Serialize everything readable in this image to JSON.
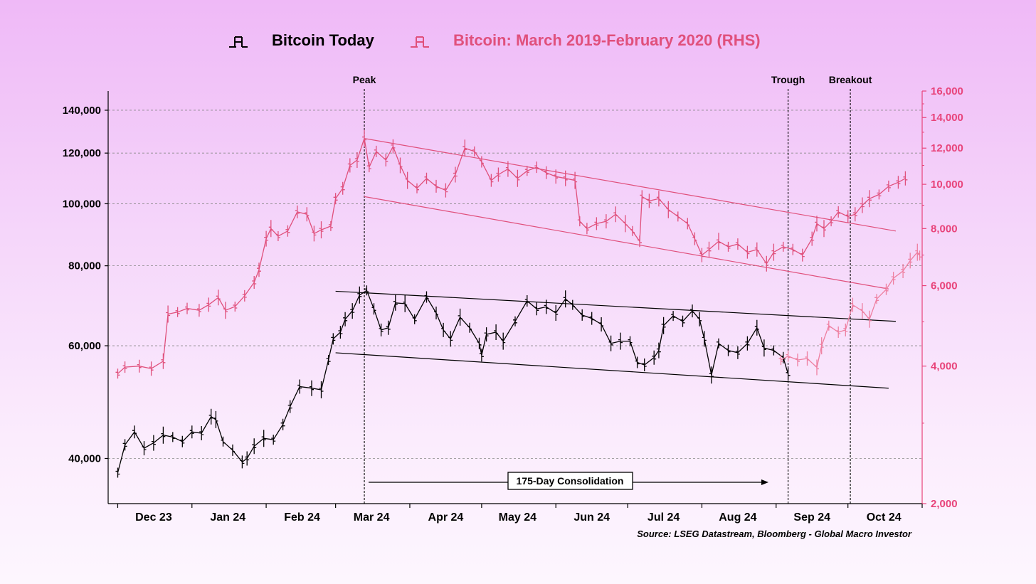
{
  "legend": {
    "series1": "Bitcoin Today",
    "series2": "Bitcoin: March 2019-February 2020 (RHS)"
  },
  "colors": {
    "series1": "#000000",
    "series2": "#e0507c",
    "series2_light": "#ee7fa0",
    "axis_right": "#e8437a"
  },
  "annotations": {
    "peak": "Peak",
    "trough": "Trough",
    "breakout": "Breakout",
    "consolidation": "175-Day Consolidation",
    "source": "Source: LSEG Datastream, Bloomberg - Global Macro Investor"
  },
  "chart_data": {
    "type": "line",
    "title": "",
    "x_tick_labels": [
      "Dec 23",
      "Jan 24",
      "Feb 24",
      "Mar 24",
      "Apr 24",
      "May 24",
      "Jun 24",
      "Jul 24",
      "Aug 24",
      "Sep 24",
      "Oct 24"
    ],
    "y_left": {
      "scale": "log",
      "range": [
        34000,
        150000
      ],
      "ticks": [
        40000,
        60000,
        80000,
        100000,
        120000,
        140000
      ],
      "tick_labels": [
        "40,000",
        "60,000",
        "80,000",
        "100,000",
        "120,000",
        "140,000"
      ]
    },
    "y_right": {
      "scale": "log",
      "range": [
        2000,
        16000
      ],
      "ticks": [
        2000,
        4000,
        6000,
        8000,
        10000,
        12000,
        14000,
        16000
      ],
      "tick_labels": [
        "2,000",
        "4,000",
        "6,000",
        "8,000",
        "10,000",
        "12,000",
        "14,000",
        "16,000"
      ]
    },
    "series": [
      {
        "name": "Bitcoin Today",
        "axis": "left",
        "points": [
          [
            "2023-12-01",
            38000
          ],
          [
            "2023-12-04",
            42000
          ],
          [
            "2023-12-08",
            44000
          ],
          [
            "2023-12-12",
            41500
          ],
          [
            "2023-12-16",
            42300
          ],
          [
            "2023-12-20",
            43500
          ],
          [
            "2023-12-24",
            43200
          ],
          [
            "2023-12-28",
            42500
          ],
          [
            "2024-01-01",
            44000
          ],
          [
            "2024-01-05",
            43800
          ],
          [
            "2024-01-09",
            46500
          ],
          [
            "2024-01-11",
            46000
          ],
          [
            "2024-01-14",
            42500
          ],
          [
            "2024-01-18",
            41200
          ],
          [
            "2024-01-22",
            39500
          ],
          [
            "2024-01-24",
            40000
          ],
          [
            "2024-01-27",
            41800
          ],
          [
            "2024-01-31",
            43000
          ],
          [
            "2024-02-04",
            42800
          ],
          [
            "2024-02-08",
            45200
          ],
          [
            "2024-02-11",
            48200
          ],
          [
            "2024-02-15",
            51800
          ],
          [
            "2024-02-20",
            51500
          ],
          [
            "2024-02-24",
            51200
          ],
          [
            "2024-02-27",
            57000
          ],
          [
            "2024-02-29",
            61500
          ],
          [
            "2024-03-03",
            63000
          ],
          [
            "2024-03-05",
            66000
          ],
          [
            "2024-03-08",
            68000
          ],
          [
            "2024-03-11",
            72000
          ],
          [
            "2024-03-14",
            73200
          ],
          [
            "2024-03-17",
            68500
          ],
          [
            "2024-03-20",
            63500
          ],
          [
            "2024-03-23",
            64000
          ],
          [
            "2024-03-26",
            70000
          ],
          [
            "2024-03-30",
            69800
          ],
          [
            "2024-04-03",
            66000
          ],
          [
            "2024-04-08",
            71500
          ],
          [
            "2024-04-12",
            67500
          ],
          [
            "2024-04-15",
            63500
          ],
          [
            "2024-04-18",
            61500
          ],
          [
            "2024-04-22",
            66500
          ],
          [
            "2024-04-26",
            64000
          ],
          [
            "2024-04-30",
            60500
          ],
          [
            "2024-05-01",
            58000
          ],
          [
            "2024-05-03",
            62500
          ],
          [
            "2024-05-07",
            63000
          ],
          [
            "2024-05-10",
            61000
          ],
          [
            "2024-05-15",
            65500
          ],
          [
            "2024-05-20",
            70500
          ],
          [
            "2024-05-24",
            68500
          ],
          [
            "2024-05-28",
            69000
          ],
          [
            "2024-06-01",
            67500
          ],
          [
            "2024-06-05",
            71000
          ],
          [
            "2024-06-08",
            69500
          ],
          [
            "2024-06-12",
            67000
          ],
          [
            "2024-06-16",
            66200
          ],
          [
            "2024-06-20",
            64800
          ],
          [
            "2024-06-24",
            60500
          ],
          [
            "2024-06-28",
            61000
          ],
          [
            "2024-07-02",
            61000
          ],
          [
            "2024-07-05",
            56500
          ],
          [
            "2024-07-08",
            56000
          ],
          [
            "2024-07-12",
            57500
          ],
          [
            "2024-07-14",
            59000
          ],
          [
            "2024-07-16",
            64500
          ],
          [
            "2024-07-20",
            66800
          ],
          [
            "2024-07-24",
            65500
          ],
          [
            "2024-07-28",
            68000
          ],
          [
            "2024-07-31",
            66000
          ],
          [
            "2024-08-02",
            61500
          ],
          [
            "2024-08-05",
            54000
          ],
          [
            "2024-08-08",
            60500
          ],
          [
            "2024-08-12",
            59000
          ],
          [
            "2024-08-16",
            58500
          ],
          [
            "2024-08-20",
            60500
          ],
          [
            "2024-08-24",
            64000
          ],
          [
            "2024-08-27",
            59500
          ],
          [
            "2024-08-31",
            59000
          ],
          [
            "2024-09-04",
            57500
          ],
          [
            "2024-09-06",
            54200
          ]
        ]
      },
      {
        "name": "Bitcoin: March 2019-February 2020 (RHS)",
        "axis": "right",
        "points": [
          [
            "2023-12-01",
            3850
          ],
          [
            "2023-12-04",
            3980
          ],
          [
            "2023-12-10",
            4000
          ],
          [
            "2023-12-15",
            3950
          ],
          [
            "2023-12-20",
            4100
          ],
          [
            "2023-12-22",
            5200
          ],
          [
            "2023-12-26",
            5250
          ],
          [
            "2023-12-30",
            5350
          ],
          [
            "2024-01-04",
            5300
          ],
          [
            "2024-01-08",
            5450
          ],
          [
            "2024-01-12",
            5650
          ],
          [
            "2024-01-15",
            5300
          ],
          [
            "2024-01-19",
            5400
          ],
          [
            "2024-01-23",
            5700
          ],
          [
            "2024-01-27",
            6100
          ],
          [
            "2024-01-29",
            6500
          ],
          [
            "2024-02-01",
            7600
          ],
          [
            "2024-02-03",
            8000
          ],
          [
            "2024-02-06",
            7700
          ],
          [
            "2024-02-10",
            7900
          ],
          [
            "2024-02-14",
            8700
          ],
          [
            "2024-02-18",
            8600
          ],
          [
            "2024-02-21",
            7800
          ],
          [
            "2024-02-24",
            7950
          ],
          [
            "2024-02-28",
            8100
          ],
          [
            "2024-03-01",
            9300
          ],
          [
            "2024-03-04",
            9800
          ],
          [
            "2024-03-07",
            11000
          ],
          [
            "2024-03-10",
            11300
          ],
          [
            "2024-03-13",
            12600
          ],
          [
            "2024-03-15",
            10900
          ],
          [
            "2024-03-18",
            11800
          ],
          [
            "2024-03-22",
            11300
          ],
          [
            "2024-03-25",
            12100
          ],
          [
            "2024-03-28",
            11000
          ],
          [
            "2024-03-31",
            10200
          ],
          [
            "2024-04-04",
            9800
          ],
          [
            "2024-04-08",
            10300
          ],
          [
            "2024-04-12",
            9900
          ],
          [
            "2024-04-16",
            9700
          ],
          [
            "2024-04-20",
            10500
          ],
          [
            "2024-04-24",
            12000
          ],
          [
            "2024-04-28",
            11800
          ],
          [
            "2024-05-01",
            11200
          ],
          [
            "2024-05-05",
            10200
          ],
          [
            "2024-05-08",
            10500
          ],
          [
            "2024-05-12",
            10800
          ],
          [
            "2024-05-16",
            10300
          ],
          [
            "2024-05-20",
            10700
          ],
          [
            "2024-05-24",
            10900
          ],
          [
            "2024-05-28",
            10600
          ],
          [
            "2024-06-01",
            10400
          ],
          [
            "2024-06-05",
            10300
          ],
          [
            "2024-06-09",
            10200
          ],
          [
            "2024-06-11",
            8300
          ],
          [
            "2024-06-14",
            8000
          ],
          [
            "2024-06-18",
            8200
          ],
          [
            "2024-06-22",
            8300
          ],
          [
            "2024-06-26",
            8600
          ],
          [
            "2024-06-30",
            8200
          ],
          [
            "2024-07-03",
            7900
          ],
          [
            "2024-07-06",
            7500
          ],
          [
            "2024-07-07",
            9400
          ],
          [
            "2024-07-10",
            9200
          ],
          [
            "2024-07-14",
            9300
          ],
          [
            "2024-07-18",
            8800
          ],
          [
            "2024-07-22",
            8500
          ],
          [
            "2024-07-26",
            8200
          ],
          [
            "2024-07-29",
            7600
          ],
          [
            "2024-08-01",
            7000
          ],
          [
            "2024-08-04",
            7200
          ],
          [
            "2024-08-08",
            7500
          ],
          [
            "2024-08-12",
            7300
          ],
          [
            "2024-08-16",
            7400
          ],
          [
            "2024-08-20",
            7100
          ],
          [
            "2024-08-24",
            7200
          ],
          [
            "2024-08-28",
            6700
          ],
          [
            "2024-08-31",
            7100
          ],
          [
            "2024-09-04",
            7300
          ],
          [
            "2024-09-08",
            7200
          ],
          [
            "2024-09-12",
            7000
          ],
          [
            "2024-09-16",
            7600
          ],
          [
            "2024-09-18",
            8200
          ],
          [
            "2024-09-21",
            8000
          ],
          [
            "2024-09-24",
            8300
          ],
          [
            "2024-09-27",
            8700
          ],
          [
            "2024-10-01",
            8500
          ],
          [
            "2024-10-04",
            8600
          ],
          [
            "2024-10-07",
            9000
          ],
          [
            "2024-10-10",
            9300
          ],
          [
            "2024-10-14",
            9500
          ],
          [
            "2024-10-18",
            9900
          ],
          [
            "2024-10-22",
            10100
          ],
          [
            "2024-10-25",
            10300
          ]
        ]
      },
      {
        "name": "",
        "axis": "left",
        "style": "light",
        "points": [
          [
            "2024-09-03",
            57000
          ],
          [
            "2024-09-06",
            57800
          ],
          [
            "2024-09-10",
            57000
          ],
          [
            "2024-09-14",
            57300
          ],
          [
            "2024-09-18",
            55500
          ],
          [
            "2024-09-20",
            60000
          ],
          [
            "2024-09-23",
            64500
          ],
          [
            "2024-09-27",
            63000
          ],
          [
            "2024-09-30",
            63500
          ],
          [
            "2024-10-03",
            69500
          ],
          [
            "2024-10-07",
            68000
          ],
          [
            "2024-10-10",
            66000
          ],
          [
            "2024-10-13",
            71000
          ],
          [
            "2024-10-17",
            73500
          ],
          [
            "2024-10-20",
            76500
          ],
          [
            "2024-10-24",
            78500
          ],
          [
            "2024-10-27",
            81500
          ],
          [
            "2024-10-30",
            84000
          ],
          [
            "2024-10-31",
            83000
          ]
        ]
      }
    ],
    "trend_lines": [
      {
        "axis": "left",
        "from": [
          "2024-03-01",
          73000
        ],
        "to": [
          "2024-10-21",
          65500
        ]
      },
      {
        "axis": "left",
        "from": [
          "2024-03-01",
          58500
        ],
        "to": [
          "2024-10-18",
          51500
        ]
      },
      {
        "axis": "right",
        "from": [
          "2024-03-13",
          12600
        ],
        "to": [
          "2024-10-21",
          7900
        ]
      },
      {
        "axis": "right",
        "from": [
          "2024-03-13",
          9400
        ],
        "to": [
          "2024-10-18",
          5900
        ]
      }
    ],
    "vertical_markers": [
      {
        "label": "Peak",
        "date": "2024-03-13"
      },
      {
        "label": "Trough",
        "date": "2024-09-06"
      },
      {
        "label": "Breakout",
        "date": "2024-10-02"
      }
    ],
    "grid": true,
    "legend_position": "top"
  }
}
